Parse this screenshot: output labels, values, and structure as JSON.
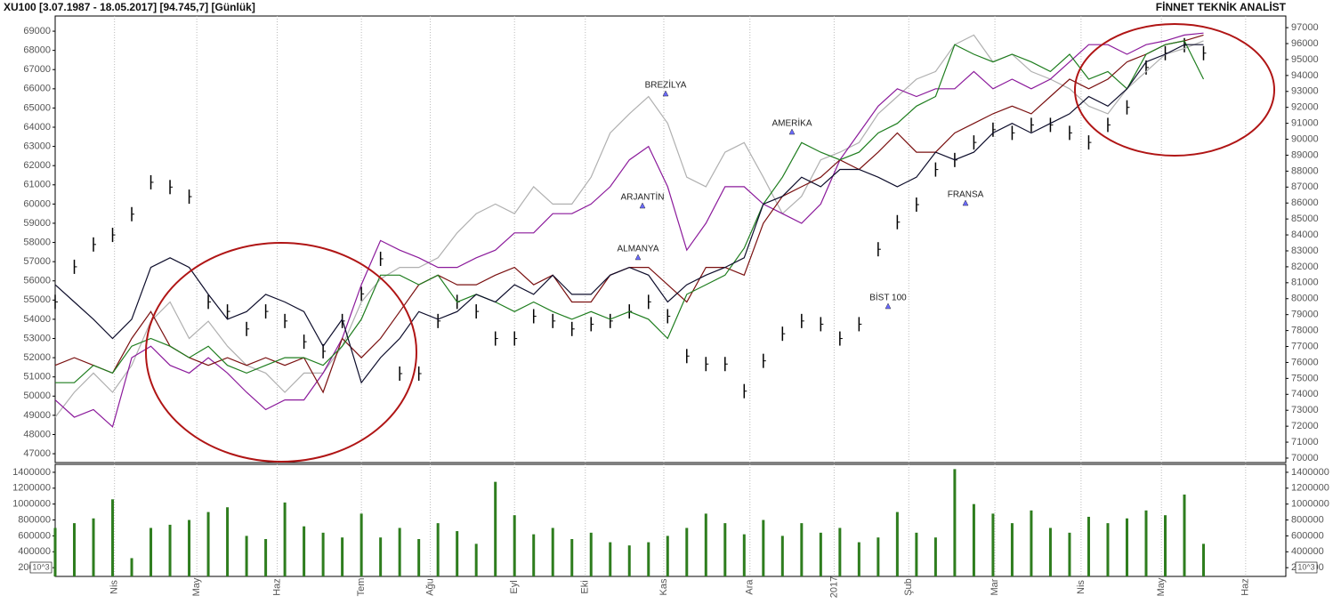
{
  "header": {
    "left": "XU100  [3.07.1987 - 18.05.2017]  [94.745,7]  [Günlük]",
    "right": "FİNNET TEKNİK ANALİST"
  },
  "chart_data": [
    {
      "type": "line",
      "x": [
        0,
        1,
        2,
        3,
        4,
        5,
        6,
        7,
        8,
        9,
        10,
        11,
        12,
        13,
        14,
        15,
        16,
        17,
        18,
        19,
        20,
        21,
        22,
        23,
        24,
        25,
        26,
        27,
        28,
        29,
        30,
        31,
        32,
        33,
        34,
        35,
        36,
        37,
        38,
        39,
        40,
        41,
        42,
        43,
        44,
        45,
        46,
        47,
        48,
        49,
        50,
        51,
        52,
        53,
        54,
        55,
        56,
        57,
        58,
        59,
        60
      ],
      "xlim": [
        0,
        64.3
      ],
      "xticks": [
        {
          "value": 3.1,
          "label": "Nis"
        },
        {
          "value": 7.4,
          "label": "May"
        },
        {
          "value": 11.6,
          "label": "Haz"
        },
        {
          "value": 16,
          "label": "Tem"
        },
        {
          "value": 19.6,
          "label": "Ağu"
        },
        {
          "value": 24,
          "label": "Eyl"
        },
        {
          "value": 27.7,
          "label": "Eki"
        },
        {
          "value": 31.8,
          "label": "Kas"
        },
        {
          "value": 36.3,
          "label": "Ara"
        },
        {
          "value": 40.7,
          "label": "2017"
        },
        {
          "value": 44.6,
          "label": "Şub"
        },
        {
          "value": 49.1,
          "label": "Mar"
        },
        {
          "value": 53.6,
          "label": "Nis"
        },
        {
          "value": 57.8,
          "label": "May"
        },
        {
          "value": 62.2,
          "label": "Haz"
        }
      ],
      "ylim": [
        46540,
        69790
      ],
      "yticks": [
        47000,
        48000,
        49000,
        50000,
        51000,
        52000,
        53000,
        54000,
        55000,
        56000,
        57000,
        58000,
        59000,
        60000,
        61000,
        62000,
        63000,
        64000,
        65000,
        66000,
        67000,
        68000,
        69000
      ],
      "y2lim": [
        69720,
        97730
      ],
      "y2ticks": [
        70000,
        71000,
        72000,
        73000,
        74000,
        75000,
        76000,
        77000,
        78000,
        79000,
        80000,
        81000,
        82000,
        83000,
        84000,
        85000,
        86000,
        87000,
        88000,
        89000,
        90000,
        91000,
        92000,
        93000,
        94000,
        95000,
        96000,
        97000
      ],
      "grid": true,
      "series": [
        {
          "name": "BİST 100",
          "color": "#000000",
          "axis": "y2",
          "style": "bars",
          "values": [
            79800,
            82000,
            83400,
            84000,
            85300,
            87300,
            87000,
            86400,
            79800,
            79200,
            78100,
            79200,
            78600,
            77300,
            76700,
            78600,
            80300,
            82500,
            75300,
            75300,
            78600,
            79800,
            79200,
            77500,
            77500,
            78900,
            78600,
            78100,
            78400,
            78600,
            79200,
            79800,
            78900,
            76400,
            75900,
            75900,
            74200,
            76100,
            77800,
            78600,
            78400,
            77500,
            78400,
            83100,
            84800,
            85900,
            88100,
            88700,
            89800,
            90600,
            90400,
            90900,
            90900,
            90400,
            89800,
            90900,
            92000,
            94500,
            95400,
            95900,
            95400
          ]
        },
        {
          "name": "BREZİLYA",
          "color": "#b0b0b0",
          "values": [
            48900,
            50200,
            51200,
            50200,
            51600,
            53900,
            54900,
            53000,
            53900,
            52600,
            51600,
            51200,
            50200,
            51200,
            51200,
            52600,
            54900,
            56100,
            56700,
            56700,
            57200,
            58500,
            59500,
            60000,
            59500,
            60900,
            60000,
            60000,
            61400,
            63700,
            64700,
            65600,
            64200,
            61400,
            60900,
            62700,
            63200,
            61400,
            59500,
            60400,
            62300,
            62700,
            63200,
            64700,
            65600,
            66500,
            66900,
            68300,
            68800,
            67400,
            67800,
            66900,
            66500,
            66000,
            65100,
            64700,
            66000,
            66900,
            67800,
            68100,
            68500
          ]
        },
        {
          "name": "ARJANTİN",
          "color": "#8b1a9b",
          "values": [
            49800,
            48900,
            49300,
            48400,
            52000,
            52600,
            51600,
            51200,
            52000,
            51200,
            50200,
            49300,
            49800,
            49800,
            51200,
            53000,
            55800,
            58100,
            57600,
            57200,
            56700,
            56700,
            57200,
            57600,
            58500,
            58500,
            59500,
            59500,
            60000,
            60900,
            62300,
            63000,
            60900,
            57600,
            59000,
            60900,
            60900,
            60000,
            59500,
            59000,
            60000,
            62300,
            63700,
            65100,
            66000,
            65600,
            66000,
            66000,
            66900,
            66000,
            66500,
            66000,
            66500,
            67400,
            68300,
            68300,
            67800,
            68300,
            68500,
            68800,
            68900
          ]
        },
        {
          "name": "ALMANYA",
          "color": "#7a1010",
          "values": [
            51600,
            52000,
            51600,
            51200,
            53000,
            54400,
            52600,
            52000,
            51600,
            52000,
            51600,
            52000,
            51600,
            52000,
            50200,
            53000,
            52000,
            53000,
            54400,
            55800,
            56300,
            55800,
            55800,
            56300,
            56700,
            55800,
            56300,
            54900,
            54900,
            56300,
            56700,
            56700,
            55800,
            54900,
            56700,
            56700,
            56300,
            59000,
            60400,
            60900,
            61400,
            62300,
            61800,
            62700,
            63700,
            62700,
            62700,
            63700,
            64200,
            64700,
            65100,
            64700,
            65600,
            66500,
            66000,
            66500,
            67400,
            67800,
            68300,
            68500,
            68800
          ]
        },
        {
          "name": "AMERİKA",
          "color": "#1e7d1e",
          "values": [
            50700,
            50700,
            51600,
            51200,
            52600,
            53000,
            52600,
            52000,
            52600,
            51600,
            51200,
            51600,
            52000,
            52000,
            51600,
            52600,
            54000,
            56300,
            56300,
            55800,
            56300,
            54900,
            55300,
            54900,
            54400,
            54900,
            54400,
            54000,
            54400,
            54000,
            54400,
            54000,
            53000,
            55300,
            55800,
            56300,
            57700,
            60000,
            61400,
            63200,
            62700,
            62300,
            62700,
            63700,
            64200,
            65100,
            65600,
            68300,
            67800,
            67400,
            67800,
            67400,
            66900,
            67800,
            66500,
            66900,
            66000,
            67800,
            68300,
            68500,
            66500
          ]
        },
        {
          "name": "FRANSA",
          "color": "#0d0d2b",
          "values": [
            55800,
            54900,
            54000,
            53000,
            54000,
            56700,
            57200,
            56700,
            55300,
            54000,
            54400,
            55300,
            54900,
            54400,
            52600,
            54000,
            50700,
            52000,
            53000,
            54400,
            54000,
            54400,
            55300,
            54900,
            55800,
            55300,
            56300,
            55300,
            55300,
            56300,
            56700,
            56300,
            54900,
            55800,
            56300,
            56700,
            57200,
            60000,
            60400,
            61400,
            60900,
            61800,
            61800,
            61400,
            60900,
            61400,
            62700,
            62300,
            62700,
            63700,
            64200,
            63700,
            64200,
            64700,
            65600,
            65100,
            66000,
            67400,
            67800,
            68300,
            68300
          ]
        }
      ]
    },
    {
      "type": "bar",
      "color": "#2e7d1e",
      "unit_label": "10^3",
      "ylim": [
        90000,
        1500000
      ],
      "yticks": [
        200000,
        400000,
        600000,
        800000,
        1000000,
        1200000,
        1400000
      ],
      "values": [
        700000,
        760000,
        820000,
        1060000,
        320000,
        700000,
        740000,
        800000,
        900000,
        960000,
        600000,
        560000,
        1020000,
        720000,
        640000,
        580000,
        880000,
        580000,
        700000,
        560000,
        760000,
        660000,
        500000,
        1280000,
        860000,
        620000,
        700000,
        560000,
        640000,
        520000,
        480000,
        520000,
        600000,
        700000,
        880000,
        760000,
        620000,
        800000,
        600000,
        760000,
        640000,
        700000,
        520000,
        580000,
        900000,
        640000,
        580000,
        1440000,
        1000000,
        880000,
        760000,
        920000,
        700000,
        640000,
        840000,
        760000,
        820000,
        920000,
        860000,
        1120000,
        500000
      ]
    }
  ]
}
